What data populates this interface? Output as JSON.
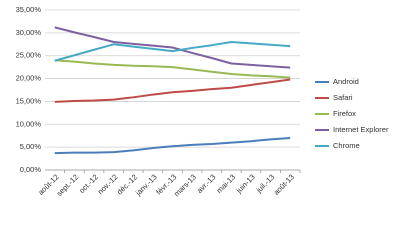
{
  "chart_data": {
    "type": "line",
    "categories": [
      "août-12",
      "sept.-12",
      "oct.-12",
      "nov.-12",
      "déc.-12",
      "janv.-13",
      "févr.-13",
      "mars-13",
      "avr.-13",
      "mai-13",
      "juin-13",
      "juil.-13",
      "août-13"
    ],
    "series": [
      {
        "name": "Android",
        "color": "#4a7ebb",
        "values": [
          3.7,
          3.8,
          3.8,
          3.9,
          4.3,
          4.8,
          5.2,
          5.5,
          5.7,
          6.0,
          6.3,
          6.7,
          7.0
        ]
      },
      {
        "name": "Safari",
        "color": "#be4b48",
        "values": [
          14.9,
          15.1,
          15.2,
          15.4,
          15.9,
          16.5,
          17.0,
          17.3,
          17.7,
          18.0,
          18.6,
          19.2,
          19.8
        ]
      },
      {
        "name": "Firefox",
        "color": "#98b954",
        "values": [
          24.0,
          23.7,
          23.3,
          23.0,
          22.8,
          22.7,
          22.5,
          22.0,
          21.5,
          21.0,
          20.7,
          20.5,
          20.2
        ]
      },
      {
        "name": "Internet Explorer",
        "color": "#7d60a0",
        "values": [
          31.2,
          30.1,
          29.1,
          28.0,
          27.6,
          27.2,
          26.8,
          25.6,
          24.5,
          23.3,
          23.0,
          22.7,
          22.4
        ]
      },
      {
        "name": "Chrome",
        "color": "#46aac5",
        "values": [
          23.9,
          25.1,
          26.3,
          27.5,
          27.0,
          26.5,
          26.0,
          26.7,
          27.3,
          28.0,
          27.7,
          27.4,
          27.1
        ]
      }
    ],
    "ylim": [
      0,
      35
    ],
    "yticks": [
      {
        "value": 0,
        "label": "0,00%"
      },
      {
        "value": 5,
        "label": "5,00%"
      },
      {
        "value": 10,
        "label": "10,00%"
      },
      {
        "value": 15,
        "label": "15,00%"
      },
      {
        "value": 20,
        "label": "20,00%"
      },
      {
        "value": 25,
        "label": "25,00%"
      },
      {
        "value": 30,
        "label": "30,00%"
      },
      {
        "value": 35,
        "label": "35,00%"
      }
    ],
    "grid": true,
    "legend": "right"
  }
}
